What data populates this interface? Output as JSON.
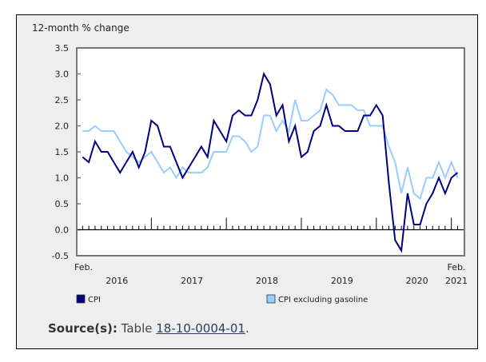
{
  "chart_data": {
    "type": "line",
    "title": "",
    "ylabel": "12-month % change",
    "xlabel": "",
    "ylim": [
      -0.5,
      3.5
    ],
    "yticks": [
      3.5,
      3.0,
      2.5,
      2.0,
      1.5,
      1.0,
      0.5,
      0.0,
      -0.5
    ],
    "ytick_labels": [
      "3.5",
      "3.0",
      "2.5",
      "2.0",
      "1.5",
      "1.0",
      "0.5",
      "0.0",
      "-0.5"
    ],
    "grid": false,
    "legend_position": "bottom",
    "x_start": "Feb. 2016",
    "x_end": "Feb. 2021",
    "x_labels": [
      {
        "text": "Feb.",
        "month_index": 0,
        "row": 1
      },
      {
        "text": "2016",
        "month_index": 5.5,
        "row": 2
      },
      {
        "text": "2017",
        "month_index": 17.5,
        "row": 2
      },
      {
        "text": "2018",
        "month_index": 29.5,
        "row": 2
      },
      {
        "text": "2019",
        "month_index": 41.5,
        "row": 2
      },
      {
        "text": "2020",
        "month_index": 53.5,
        "row": 2
      },
      {
        "text": "Feb.",
        "month_index": 60,
        "row": 1
      },
      {
        "text": "2021",
        "month_index": 60,
        "row": 2
      }
    ],
    "year_boundaries": [
      11,
      23,
      35,
      47,
      59
    ],
    "x": [
      "2016-02",
      "2016-03",
      "2016-04",
      "2016-05",
      "2016-06",
      "2016-07",
      "2016-08",
      "2016-09",
      "2016-10",
      "2016-11",
      "2016-12",
      "2017-01",
      "2017-02",
      "2017-03",
      "2017-04",
      "2017-05",
      "2017-06",
      "2017-07",
      "2017-08",
      "2017-09",
      "2017-10",
      "2017-11",
      "2017-12",
      "2018-01",
      "2018-02",
      "2018-03",
      "2018-04",
      "2018-05",
      "2018-06",
      "2018-07",
      "2018-08",
      "2018-09",
      "2018-10",
      "2018-11",
      "2018-12",
      "2019-01",
      "2019-02",
      "2019-03",
      "2019-04",
      "2019-05",
      "2019-06",
      "2019-07",
      "2019-08",
      "2019-09",
      "2019-10",
      "2019-11",
      "2019-12",
      "2020-01",
      "2020-02",
      "2020-03",
      "2020-04",
      "2020-05",
      "2020-06",
      "2020-07",
      "2020-08",
      "2020-09",
      "2020-10",
      "2020-11",
      "2020-12",
      "2021-01",
      "2021-02"
    ],
    "series": [
      {
        "name": "CPI",
        "color": "#000080",
        "values": [
          1.4,
          1.3,
          1.7,
          1.5,
          1.5,
          1.3,
          1.1,
          1.3,
          1.5,
          1.2,
          1.5,
          2.1,
          2.0,
          1.6,
          1.6,
          1.3,
          1.0,
          1.2,
          1.4,
          1.6,
          1.4,
          2.1,
          1.9,
          1.7,
          2.2,
          2.3,
          2.2,
          2.2,
          2.5,
          3.0,
          2.8,
          2.2,
          2.4,
          1.7,
          2.0,
          1.4,
          1.5,
          1.9,
          2.0,
          2.4,
          2.0,
          2.0,
          1.9,
          1.9,
          1.9,
          2.2,
          2.2,
          2.4,
          2.2,
          0.9,
          -0.2,
          -0.4,
          0.7,
          0.1,
          0.1,
          0.5,
          0.7,
          1.0,
          0.7,
          1.0,
          1.1
        ]
      },
      {
        "name": "CPI excluding gasoline",
        "color": "#99ccff",
        "values": [
          1.9,
          1.9,
          2.0,
          1.9,
          1.9,
          1.9,
          1.7,
          1.5,
          1.4,
          1.3,
          1.4,
          1.5,
          1.3,
          1.1,
          1.2,
          1.0,
          1.2,
          1.1,
          1.1,
          1.1,
          1.2,
          1.5,
          1.5,
          1.5,
          1.8,
          1.8,
          1.7,
          1.5,
          1.6,
          2.2,
          2.2,
          1.9,
          2.1,
          1.9,
          2.5,
          2.1,
          2.1,
          2.2,
          2.3,
          2.7,
          2.6,
          2.4,
          2.4,
          2.4,
          2.3,
          2.3,
          2.0,
          2.0,
          2.0,
          1.6,
          1.3,
          0.7,
          1.2,
          0.7,
          0.6,
          1.0,
          1.0,
          1.3,
          1.0,
          1.3,
          1.0
        ]
      }
    ]
  },
  "source": {
    "label": "Source(s):",
    "prefix": "Table",
    "link_text": "18-10-0004-01",
    "suffix": "."
  }
}
